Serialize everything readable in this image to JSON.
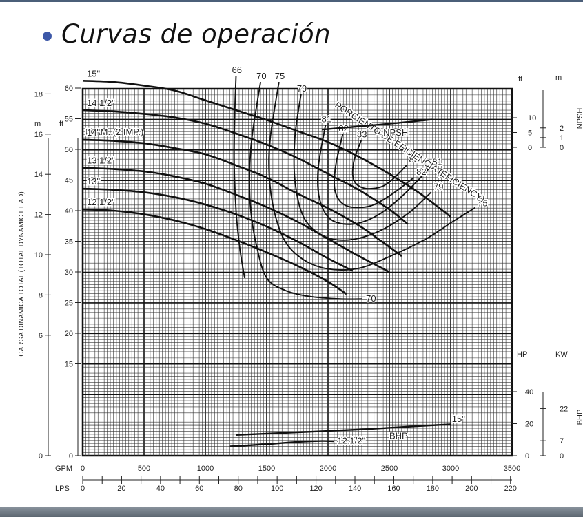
{
  "slide": {
    "title": "Curvas de operación"
  },
  "chart_data": {
    "type": "line",
    "diameter_header": "DIAM. (2 IMP.)",
    "x_axis": {
      "gpm": {
        "label": "GPM",
        "ticks": [
          "0",
          "500",
          "1000",
          "1500",
          "2000",
          "2500",
          "3000",
          "3500"
        ],
        "range": [
          0,
          3500
        ]
      },
      "lps": {
        "label": "LPS",
        "ticks": [
          "0",
          "20",
          "40",
          "60",
          "80",
          "100",
          "120",
          "140",
          "160",
          "180",
          "200",
          "220"
        ],
        "range": [
          0,
          220.8
        ]
      }
    },
    "y_axis_head": {
      "title": "CARGA DINAMICA TOTAL (TOTAL DYNAMIC HEAD)",
      "m_label": "m",
      "ft_label": "ft",
      "m_ticks": [
        "0",
        "6",
        "8",
        "10",
        "12",
        "14",
        "16",
        "18"
      ],
      "ft_ticks": [
        "0",
        "15",
        "20",
        "25",
        "30",
        "35",
        "40",
        "45",
        "50",
        "55",
        "60"
      ]
    },
    "npsh_axis": {
      "title": "NPSH",
      "ft_label": "ft",
      "m_label": "m",
      "ft_ticks": [
        "0",
        "5",
        "10"
      ],
      "m_ticks": [
        "0",
        "1",
        "2"
      ]
    },
    "bhp_axis": {
      "title": "BHP",
      "hp_label": "HP",
      "kw_label": "KW",
      "hp_ticks": [
        "0",
        "20",
        "40"
      ],
      "kw_ticks": [
        "0",
        "7",
        "22"
      ]
    },
    "impeller_curves": [
      {
        "name": "15\"",
        "points": [
          [
            0,
            61.2
          ],
          [
            250,
            61
          ],
          [
            500,
            60.4
          ],
          [
            750,
            59.6
          ],
          [
            1000,
            58
          ],
          [
            1250,
            56.4
          ],
          [
            1500,
            54.8
          ],
          [
            1750,
            53
          ],
          [
            2000,
            51.2
          ],
          [
            2250,
            48.8
          ],
          [
            2500,
            46
          ],
          [
            2750,
            42.8
          ],
          [
            3000,
            39
          ]
        ]
      },
      {
        "name": "14 1/2\"",
        "points": [
          [
            0,
            56.4
          ],
          [
            250,
            56.2
          ],
          [
            500,
            55.8
          ],
          [
            750,
            55.2
          ],
          [
            1000,
            54.2
          ],
          [
            1250,
            52.6
          ],
          [
            1500,
            50.8
          ],
          [
            1750,
            48.6
          ],
          [
            2000,
            46
          ],
          [
            2250,
            43.4
          ],
          [
            2500,
            40.2
          ],
          [
            2650,
            37.8
          ]
        ]
      },
      {
        "name": "14\"",
        "points": [
          [
            0,
            51.6
          ],
          [
            250,
            51.4
          ],
          [
            500,
            51
          ],
          [
            750,
            50.2
          ],
          [
            1000,
            49.2
          ],
          [
            1250,
            47.4
          ],
          [
            1500,
            45.4
          ],
          [
            1750,
            42.8
          ],
          [
            2000,
            40.4
          ],
          [
            2250,
            37.6
          ],
          [
            2450,
            34.8
          ],
          [
            2600,
            32.6
          ]
        ]
      },
      {
        "name": "13 1/2\"",
        "points": [
          [
            0,
            47
          ],
          [
            250,
            46.8
          ],
          [
            500,
            46.4
          ],
          [
            750,
            45.6
          ],
          [
            1000,
            44.4
          ],
          [
            1250,
            42.6
          ],
          [
            1500,
            40.6
          ],
          [
            1750,
            38.2
          ],
          [
            2000,
            35.4
          ],
          [
            2250,
            32.6
          ],
          [
            2500,
            30
          ]
        ]
      },
      {
        "name": "13\"",
        "points": [
          [
            0,
            43.6
          ],
          [
            250,
            43.4
          ],
          [
            500,
            43
          ],
          [
            750,
            42.2
          ],
          [
            1000,
            41
          ],
          [
            1250,
            39.4
          ],
          [
            1500,
            37.4
          ],
          [
            1750,
            35
          ],
          [
            2000,
            32.2
          ],
          [
            2200,
            30.2
          ]
        ]
      },
      {
        "name": "12 1/2\"",
        "points": [
          [
            0,
            40.2
          ],
          [
            250,
            40
          ],
          [
            500,
            39.4
          ],
          [
            750,
            38.4
          ],
          [
            1000,
            37
          ],
          [
            1250,
            35.2
          ],
          [
            1500,
            33.2
          ],
          [
            1750,
            31
          ],
          [
            2000,
            28.4
          ],
          [
            2150,
            26.4
          ]
        ]
      }
    ],
    "efficiency_title": "PORCIENTO DE EFICIENCIA (EFICIENCY)",
    "efficiency_curves": [
      {
        "label": "66",
        "points": [
          [
            1250,
            62
          ],
          [
            1240,
            56
          ],
          [
            1235,
            48
          ],
          [
            1250,
            40
          ],
          [
            1280,
            34
          ],
          [
            1320,
            29
          ]
        ]
      },
      {
        "label": "70",
        "points": [
          [
            1450,
            61
          ],
          [
            1380,
            52
          ],
          [
            1360,
            46
          ],
          [
            1370,
            40
          ],
          [
            1420,
            34
          ],
          [
            1500,
            29
          ],
          [
            1650,
            27
          ],
          [
            1850,
            26
          ],
          [
            2100,
            25.6
          ],
          [
            2280,
            25.6
          ]
        ]
      },
      {
        "label": "75",
        "points": [
          [
            1600,
            61
          ],
          [
            1530,
            52
          ],
          [
            1520,
            46
          ],
          [
            1560,
            40
          ],
          [
            1650,
            35
          ],
          [
            1800,
            32
          ],
          [
            2000,
            30.5
          ],
          [
            2250,
            30.6
          ],
          [
            2500,
            32.5
          ],
          [
            2800,
            35.4
          ],
          [
            3000,
            38
          ],
          [
            3200,
            40.5
          ]
        ]
      },
      {
        "label": "79",
        "points": [
          [
            1780,
            59
          ],
          [
            1730,
            52
          ],
          [
            1730,
            45
          ],
          [
            1800,
            39
          ],
          [
            1950,
            36
          ],
          [
            2150,
            35.2
          ],
          [
            2400,
            36.5
          ],
          [
            2650,
            39.5
          ],
          [
            2840,
            43
          ]
        ]
      },
      {
        "label": "81",
        "points": [
          [
            1980,
            54
          ],
          [
            1920,
            47
          ],
          [
            1930,
            42
          ],
          [
            2020,
            38.6
          ],
          [
            2200,
            37.8
          ],
          [
            2400,
            39.2
          ],
          [
            2600,
            42.3
          ],
          [
            2830,
            47
          ]
        ]
      },
      {
        "label": "82",
        "points": [
          [
            2120,
            52.5
          ],
          [
            2060,
            47
          ],
          [
            2060,
            43
          ],
          [
            2150,
            40.8
          ],
          [
            2330,
            40.7
          ],
          [
            2500,
            42.4
          ],
          [
            2700,
            45.4
          ]
        ]
      },
      {
        "label": "83",
        "points": [
          [
            2270,
            51.5
          ],
          [
            2210,
            48
          ],
          [
            2210,
            45
          ],
          [
            2290,
            43.7
          ],
          [
            2420,
            43.8
          ],
          [
            2520,
            45
          ],
          [
            2640,
            47.4
          ]
        ]
      }
    ],
    "efficiency_labels": {
      "eff_83_right": "83",
      "eff_82_right": "82",
      "eff_81_right": "81",
      "eff_79_right": "79",
      "eff_75_right": "75",
      "eff_70_bottom": "70"
    },
    "npsh_curve": {
      "label": "NPSH",
      "points": [
        [
          1950,
          6
        ],
        [
          2400,
          7.6
        ],
        [
          2850,
          9.4
        ]
      ]
    },
    "bhp_curves": [
      {
        "name": "15\"",
        "points": [
          [
            1250,
            13
          ],
          [
            1750,
            14.6
          ],
          [
            2250,
            16.4
          ],
          [
            2750,
            18.6
          ],
          [
            3000,
            19.6
          ]
        ]
      },
      {
        "name": "12 1/2\"",
        "points": [
          [
            1200,
            5.8
          ],
          [
            1500,
            7.2
          ],
          [
            1750,
            8.6
          ],
          [
            1950,
            9.2
          ],
          [
            2050,
            9
          ]
        ]
      }
    ],
    "bhp_label": "BHP",
    "bhp_15_label": "15\"",
    "bhp_12_label": "12 1/2\"",
    "grid": true
  }
}
